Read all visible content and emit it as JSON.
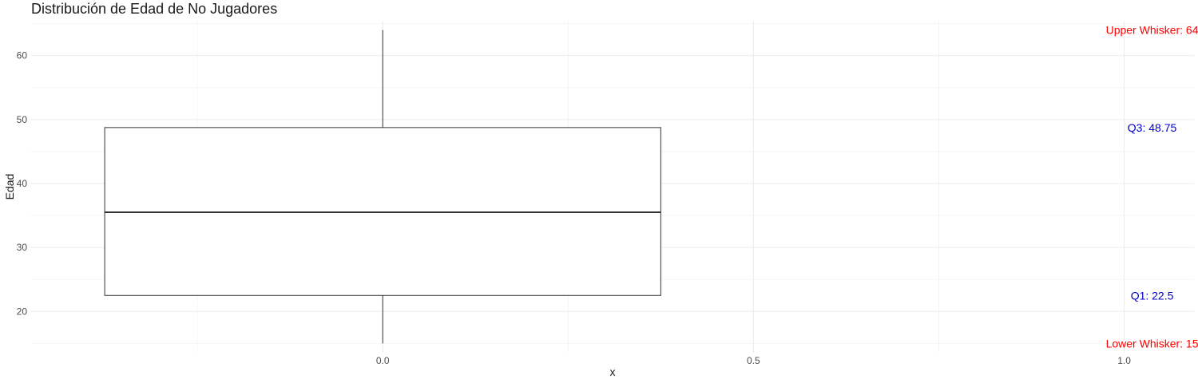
{
  "chart_data": {
    "type": "boxplot",
    "title": "Distribución de Edad de No Jugadores",
    "xlabel": "x",
    "ylabel": "Edad",
    "xlim": [
      -0.4742,
      1.0942
    ],
    "ylim": [
      13.55,
      65.45
    ],
    "x_ticks": [
      0.0,
      0.5,
      1.0
    ],
    "x_tick_labels": [
      "0.0",
      "0.5",
      "1.0"
    ],
    "x_minor_ticks": [
      -0.25,
      0.25,
      0.75
    ],
    "y_ticks": [
      20,
      30,
      40,
      50,
      60
    ],
    "y_tick_labels": [
      "20",
      "30",
      "40",
      "50",
      "60"
    ],
    "y_minor_ticks": [
      15,
      25,
      35,
      45,
      55,
      65
    ],
    "grid": true,
    "box": {
      "x": 0.0,
      "xmin": -0.375,
      "xmax": 0.375,
      "lower_whisker": 15,
      "q1": 22.5,
      "median": 35.5,
      "q3": 48.75,
      "upper_whisker": 64
    },
    "annotations": [
      {
        "label": "Upper Whisker: ",
        "value": "64",
        "x": 1.0,
        "y": 64,
        "color": "#ff0000"
      },
      {
        "label": "Q3: ",
        "value": "48.75",
        "x": 1.0,
        "y": 48.75,
        "color": "#0000cd"
      },
      {
        "label": "Q1: ",
        "value": "22.5",
        "x": 1.0,
        "y": 22.5,
        "color": "#0000cd"
      },
      {
        "label": "Lower Whisker: ",
        "value": "15",
        "x": 1.0,
        "y": 15,
        "color": "#ff0000"
      }
    ]
  }
}
